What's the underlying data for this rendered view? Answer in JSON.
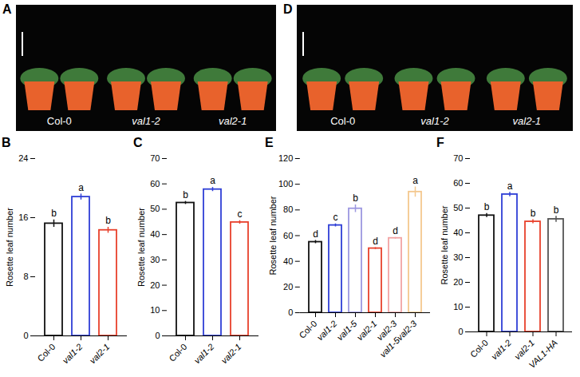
{
  "photos": [
    {
      "panel": "A",
      "labels": [
        "Col-0",
        "val1-2",
        "val2-1"
      ]
    },
    {
      "panel": "D",
      "labels": [
        "Col-0",
        "val1-2",
        "val2-1"
      ]
    }
  ],
  "chart_data": [
    {
      "panel": "B",
      "type": "bar",
      "y_label": "Rosette leaf number",
      "categories": [
        "Col-0",
        "val1-2",
        "val2-1"
      ],
      "values": [
        15.2,
        18.8,
        14.3
      ],
      "errors": [
        0.5,
        0.4,
        0.4
      ],
      "annotations": [
        "b",
        "a",
        "b"
      ],
      "colors": [
        "#111111",
        "#2f3fd6",
        "#e8412c"
      ],
      "ylim": [
        0,
        24
      ],
      "yticks": [
        0,
        8,
        16,
        24
      ]
    },
    {
      "panel": "C",
      "type": "bar",
      "y_label": "Rosette leaf number",
      "categories": [
        "Col-0",
        "val1-2",
        "val2-1"
      ],
      "values": [
        52.5,
        57.8,
        44.8
      ],
      "errors": [
        0.6,
        0.8,
        0.7
      ],
      "annotations": [
        "b",
        "a",
        "c"
      ],
      "colors": [
        "#111111",
        "#2f3fd6",
        "#e8412c"
      ],
      "ylim": [
        0,
        70
      ],
      "yticks": [
        0,
        10,
        20,
        30,
        40,
        50,
        60,
        70
      ]
    },
    {
      "panel": "E",
      "type": "bar",
      "y_label": "Rosette leaf number",
      "categories": [
        "Col-0",
        "val1-2",
        "val1-5",
        "val2-1",
        "val2-3",
        "val1-5val2-3"
      ],
      "values": [
        55,
        68,
        81,
        50,
        58,
        94
      ],
      "errors": [
        1.2,
        1.2,
        3,
        0.7,
        0.6,
        4
      ],
      "annotations": [
        "d",
        "c",
        "b",
        "d",
        "d",
        "a"
      ],
      "colors": [
        "#111111",
        "#2f3fd6",
        "#9c97e0",
        "#e8412c",
        "#f2a3a3",
        "#f4c88e"
      ],
      "ylim": [
        0,
        120
      ],
      "yticks": [
        0,
        20,
        40,
        60,
        80,
        100,
        120
      ]
    },
    {
      "panel": "F",
      "type": "bar",
      "y_label": "Rosette leaf number",
      "categories": [
        "Col-0",
        "val1-2",
        "val2-1",
        "VAL1-HA"
      ],
      "values": [
        47,
        55.5,
        44.5,
        45.5
      ],
      "errors": [
        0.8,
        0.9,
        0.8,
        1.2
      ],
      "annotations": [
        "b",
        "a",
        "b",
        "b"
      ],
      "colors": [
        "#111111",
        "#2f3fd6",
        "#e8412c",
        "#555555"
      ],
      "ylim": [
        0,
        70
      ],
      "yticks": [
        0,
        10,
        20,
        30,
        40,
        50,
        60,
        70
      ]
    }
  ]
}
